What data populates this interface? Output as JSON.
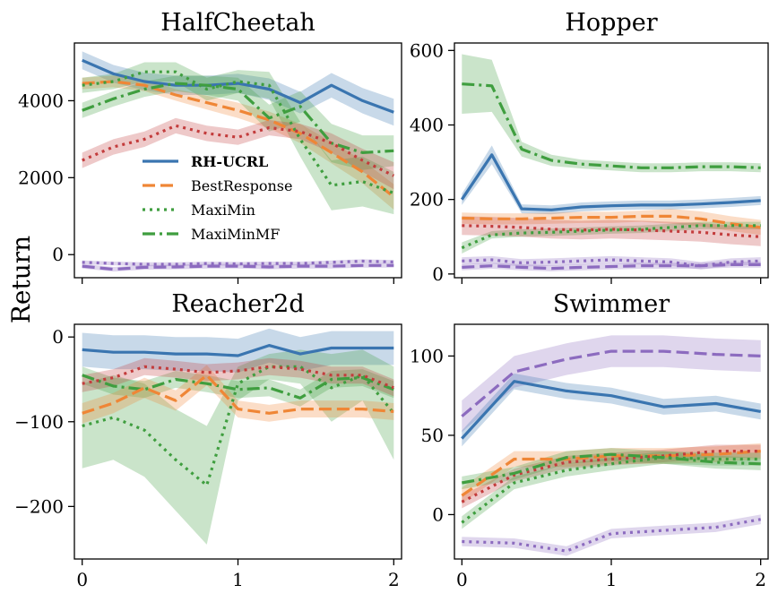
{
  "figure": {
    "ylabel": "Return"
  },
  "colors": {
    "blue": "#3a75b0",
    "orange": "#ef8636",
    "green": "#3f9e3f",
    "red": "#c33c3c",
    "purple": "#8c6bbf"
  },
  "legend": {
    "panel": 0,
    "entries": [
      {
        "label": "RH-UCRL",
        "color": "#3a75b0",
        "dash": "solid",
        "bold": true
      },
      {
        "label": "BestResponse",
        "color": "#ef8636",
        "dash": "dashed",
        "bold": false
      },
      {
        "label": "MaxiMin",
        "color": "#3f9e3f",
        "dash": "dotted",
        "bold": false
      },
      {
        "label": "MaxiMinMF",
        "color": "#3f9e3f",
        "dash": "dashdot",
        "bold": false
      }
    ]
  },
  "chart_data": [
    {
      "type": "line",
      "title": "HalfCheetah",
      "xlim": [
        -0.05,
        2.05
      ],
      "ylim": [
        -600,
        5500
      ],
      "xticks": [
        0,
        1,
        2
      ],
      "xticklabels": [
        "",
        "",
        ""
      ],
      "yticks": [
        0,
        2000,
        4000
      ],
      "yticklabels": [
        "0",
        "2000",
        "4000"
      ],
      "grid": false,
      "series": [
        {
          "color": "#3a75b0",
          "dash": "solid",
          "x": [
            0,
            0.2,
            0.4,
            0.6,
            0.8,
            1.0,
            1.2,
            1.4,
            1.6,
            1.8,
            2.0
          ],
          "y": [
            5050,
            4700,
            4500,
            4400,
            4400,
            4450,
            4300,
            3950,
            4400,
            4000,
            3700
          ],
          "band": [
            230,
            230,
            230,
            250,
            250,
            250,
            280,
            280,
            320,
            330,
            350
          ]
        },
        {
          "color": "#ef8636",
          "dash": "dashed",
          "x": [
            0,
            0.2,
            0.4,
            0.6,
            0.8,
            1.0,
            1.2,
            1.4,
            1.6,
            1.8,
            2.0
          ],
          "y": [
            4450,
            4500,
            4400,
            4150,
            3950,
            3750,
            3500,
            3150,
            2650,
            2150,
            1500
          ],
          "band": [
            150,
            150,
            150,
            150,
            180,
            200,
            220,
            250,
            280,
            300,
            330
          ]
        },
        {
          "color": "#3f9e3f",
          "dash": "dotted",
          "x": [
            0,
            0.2,
            0.4,
            0.6,
            0.8,
            1.0,
            1.2,
            1.4,
            1.6,
            1.8,
            2.0
          ],
          "y": [
            4400,
            4500,
            4750,
            4750,
            4300,
            4500,
            4400,
            3000,
            1800,
            1900,
            1600
          ],
          "band": [
            200,
            200,
            250,
            250,
            300,
            300,
            350,
            450,
            650,
            650,
            550
          ]
        },
        {
          "color": "#3f9e3f",
          "dash": "dashdot",
          "x": [
            0,
            0.2,
            0.4,
            0.6,
            0.8,
            1.0,
            1.2,
            1.4,
            1.6,
            1.8,
            2.0
          ],
          "y": [
            3750,
            4050,
            4300,
            4450,
            4400,
            4300,
            3550,
            3850,
            2900,
            2650,
            2700
          ],
          "band": [
            200,
            200,
            200,
            200,
            250,
            300,
            350,
            400,
            500,
            450,
            400
          ]
        },
        {
          "color": "#c33c3c",
          "dash": "dotted",
          "x": [
            0,
            0.2,
            0.4,
            0.6,
            0.8,
            1.0,
            1.2,
            1.4,
            1.6,
            1.8,
            2.0
          ],
          "y": [
            2450,
            2800,
            3000,
            3350,
            3150,
            3050,
            3300,
            3200,
            2900,
            2450,
            2050
          ],
          "band": [
            200,
            200,
            200,
            200,
            200,
            200,
            200,
            200,
            250,
            300,
            350
          ]
        },
        {
          "color": "#8c6bbf",
          "dash": "dashed",
          "x": [
            0,
            0.2,
            0.4,
            0.6,
            0.8,
            1.0,
            1.2,
            1.4,
            1.6,
            1.8,
            2.0
          ],
          "y": [
            -300,
            -380,
            -330,
            -320,
            -300,
            -300,
            -320,
            -300,
            -300,
            -280,
            -280
          ],
          "band": [
            60,
            60,
            60,
            60,
            60,
            60,
            60,
            60,
            60,
            60,
            60
          ]
        },
        {
          "color": "#8c6bbf",
          "dash": "dotted",
          "x": [
            0,
            0.2,
            0.4,
            0.6,
            0.8,
            1.0,
            1.2,
            1.4,
            1.6,
            1.8,
            2.0
          ],
          "y": [
            -200,
            -230,
            -250,
            -250,
            -230,
            -240,
            -230,
            -230,
            -200,
            -170,
            -190
          ],
          "band": [
            50,
            50,
            50,
            50,
            50,
            50,
            50,
            50,
            50,
            50,
            50
          ]
        }
      ]
    },
    {
      "type": "line",
      "title": "Hopper",
      "xlim": [
        -0.05,
        2.05
      ],
      "ylim": [
        -10,
        620
      ],
      "xticks": [
        0,
        1,
        2
      ],
      "xticklabels": [
        "",
        "",
        ""
      ],
      "yticks": [
        0,
        200,
        400,
        600
      ],
      "yticklabels": [
        "0",
        "200",
        "400",
        "600"
      ],
      "grid": false,
      "series": [
        {
          "color": "#3f9e3f",
          "dash": "dashdot",
          "x": [
            0,
            0.2,
            0.4,
            0.6,
            0.8,
            1.0,
            1.2,
            1.4,
            1.6,
            1.8,
            2.0
          ],
          "y": [
            510,
            505,
            335,
            305,
            295,
            290,
            285,
            285,
            288,
            288,
            285
          ],
          "band": [
            80,
            70,
            20,
            15,
            12,
            12,
            12,
            12,
            12,
            12,
            12
          ]
        },
        {
          "color": "#3a75b0",
          "dash": "solid",
          "x": [
            0,
            0.2,
            0.4,
            0.6,
            0.8,
            1.0,
            1.2,
            1.4,
            1.6,
            1.8,
            2.0
          ],
          "y": [
            200,
            320,
            175,
            172,
            180,
            183,
            185,
            185,
            188,
            192,
            197
          ],
          "band": [
            15,
            25,
            12,
            12,
            12,
            12,
            12,
            12,
            12,
            12,
            12
          ]
        },
        {
          "color": "#ef8636",
          "dash": "dashed",
          "x": [
            0,
            0.2,
            0.4,
            0.6,
            0.8,
            1.0,
            1.2,
            1.4,
            1.6,
            1.8,
            2.0
          ],
          "y": [
            150,
            148,
            148,
            150,
            152,
            152,
            155,
            155,
            148,
            135,
            125
          ],
          "band": [
            15,
            15,
            15,
            15,
            15,
            15,
            15,
            20,
            20,
            20,
            20
          ]
        },
        {
          "color": "#3f9e3f",
          "dash": "dotted",
          "x": [
            0,
            0.2,
            0.4,
            0.6,
            0.8,
            1.0,
            1.2,
            1.4,
            1.6,
            1.8,
            2.0
          ],
          "y": [
            70,
            105,
            110,
            112,
            115,
            118,
            120,
            125,
            130,
            130,
            130
          ],
          "band": [
            15,
            10,
            10,
            10,
            10,
            10,
            10,
            10,
            10,
            10,
            10
          ]
        },
        {
          "color": "#c33c3c",
          "dash": "dotted",
          "x": [
            0,
            0.2,
            0.4,
            0.6,
            0.8,
            1.0,
            1.2,
            1.4,
            1.6,
            1.8,
            2.0
          ],
          "y": [
            130,
            128,
            125,
            120,
            118,
            120,
            118,
            115,
            112,
            105,
            100
          ],
          "band": [
            25,
            25,
            25,
            25,
            25,
            25,
            25,
            25,
            25,
            25,
            25
          ]
        },
        {
          "color": "#8c6bbf",
          "dash": "dotted",
          "x": [
            0,
            0.2,
            0.4,
            0.6,
            0.8,
            1.0,
            1.2,
            1.4,
            1.6,
            1.8,
            2.0
          ],
          "y": [
            35,
            38,
            30,
            32,
            35,
            38,
            35,
            32,
            22,
            32,
            35
          ],
          "band": [
            10,
            10,
            10,
            10,
            10,
            10,
            10,
            10,
            10,
            10,
            10
          ]
        },
        {
          "color": "#8c6bbf",
          "dash": "dashed",
          "x": [
            0,
            0.2,
            0.4,
            0.6,
            0.8,
            1.0,
            1.2,
            1.4,
            1.6,
            1.8,
            2.0
          ],
          "y": [
            18,
            22,
            18,
            15,
            18,
            20,
            22,
            22,
            22,
            25,
            25
          ],
          "band": [
            8,
            8,
            8,
            8,
            8,
            8,
            8,
            8,
            8,
            8,
            8
          ]
        }
      ]
    },
    {
      "type": "line",
      "title": "Reacher2d",
      "xlim": [
        -0.05,
        2.05
      ],
      "ylim": [
        -262,
        15
      ],
      "xticks": [
        0,
        1,
        2
      ],
      "xticklabels": [
        "0",
        "1",
        "2"
      ],
      "yticks": [
        -200,
        -100,
        0
      ],
      "yticklabels": [
        "−200",
        "−100",
        "0"
      ],
      "grid": false,
      "series": [
        {
          "color": "#3a75b0",
          "dash": "solid",
          "x": [
            0,
            0.2,
            0.4,
            0.6,
            0.8,
            1.0,
            1.2,
            1.4,
            1.6,
            1.8,
            2.0
          ],
          "y": [
            -15,
            -18,
            -18,
            -20,
            -20,
            -22,
            -10,
            -20,
            -13,
            -13,
            -13
          ],
          "band": [
            20,
            20,
            20,
            20,
            20,
            20,
            20,
            20,
            20,
            20,
            20
          ]
        },
        {
          "color": "#3f9e3f",
          "dash": "dotted",
          "x": [
            0,
            0.2,
            0.4,
            0.6,
            0.8,
            1.0,
            1.2,
            1.4,
            1.6,
            1.8,
            2.0
          ],
          "y": [
            -105,
            -95,
            -110,
            -145,
            -175,
            -55,
            -35,
            -35,
            -60,
            -45,
            -90
          ],
          "band": [
            50,
            50,
            55,
            60,
            70,
            20,
            15,
            20,
            40,
            30,
            55
          ]
        },
        {
          "color": "#3f9e3f",
          "dash": "dashdot",
          "x": [
            0,
            0.2,
            0.4,
            0.6,
            0.8,
            1.0,
            1.2,
            1.4,
            1.6,
            1.8,
            2.0
          ],
          "y": [
            -45,
            -58,
            -62,
            -50,
            -55,
            -62,
            -60,
            -72,
            -50,
            -48,
            -62
          ],
          "band": [
            10,
            10,
            10,
            10,
            10,
            10,
            10,
            10,
            10,
            10,
            10
          ]
        },
        {
          "color": "#ef8636",
          "dash": "dashed",
          "x": [
            0,
            0.2,
            0.4,
            0.6,
            0.8,
            1.0,
            1.2,
            1.4,
            1.6,
            1.8,
            2.0
          ],
          "y": [
            -90,
            -78,
            -60,
            -75,
            -45,
            -85,
            -90,
            -85,
            -85,
            -85,
            -88
          ],
          "band": [
            12,
            12,
            12,
            12,
            12,
            10,
            10,
            10,
            10,
            10,
            10
          ]
        },
        {
          "color": "#c33c3c",
          "dash": "dotted",
          "x": [
            0,
            0.2,
            0.4,
            0.6,
            0.8,
            1.0,
            1.2,
            1.4,
            1.6,
            1.8,
            2.0
          ],
          "y": [
            -55,
            -48,
            -35,
            -38,
            -42,
            -40,
            -35,
            -38,
            -45,
            -45,
            -60
          ],
          "band": [
            10,
            10,
            10,
            10,
            10,
            10,
            10,
            10,
            10,
            10,
            10
          ]
        }
      ]
    },
    {
      "type": "line",
      "title": "Swimmer",
      "xlim": [
        -0.05,
        2.05
      ],
      "ylim": [
        -28,
        120
      ],
      "xticks": [
        0,
        1,
        2
      ],
      "xticklabels": [
        "0",
        "1",
        "2"
      ],
      "yticks": [
        0,
        50,
        100
      ],
      "yticklabels": [
        "0",
        "50",
        "100"
      ],
      "grid": false,
      "series": [
        {
          "color": "#8c6bbf",
          "dash": "dashed",
          "x": [
            0,
            0.35,
            0.7,
            1.0,
            1.35,
            1.7,
            2.0
          ],
          "y": [
            62,
            90,
            98,
            103,
            103,
            101,
            100
          ],
          "band": [
            10,
            10,
            10,
            10,
            10,
            10,
            10
          ]
        },
        {
          "color": "#3a75b0",
          "dash": "solid",
          "x": [
            0,
            0.35,
            0.7,
            1.0,
            1.35,
            1.7,
            2.0
          ],
          "y": [
            48,
            84,
            78,
            75,
            68,
            70,
            65
          ],
          "band": [
            5,
            5,
            5,
            5,
            5,
            5,
            5
          ]
        },
        {
          "color": "#ef8636",
          "dash": "dashed",
          "x": [
            0,
            0.35,
            0.7,
            1.0,
            1.35,
            1.7,
            2.0
          ],
          "y": [
            12,
            35,
            35,
            37,
            37,
            38,
            40
          ],
          "band": [
            5,
            5,
            5,
            5,
            5,
            5,
            5
          ]
        },
        {
          "color": "#c33c3c",
          "dash": "dotted",
          "x": [
            0,
            0.35,
            0.7,
            1.0,
            1.35,
            1.7,
            2.0
          ],
          "y": [
            8,
            25,
            33,
            35,
            37,
            40,
            40
          ],
          "band": [
            4,
            4,
            4,
            4,
            4,
            4,
            4
          ]
        },
        {
          "color": "#3f9e3f",
          "dash": "dashdot",
          "x": [
            0,
            0.35,
            0.7,
            1.0,
            1.35,
            1.7,
            2.0
          ],
          "y": [
            20,
            26,
            36,
            38,
            36,
            33,
            32
          ],
          "band": [
            4,
            4,
            4,
            4,
            4,
            4,
            4
          ]
        },
        {
          "color": "#3f9e3f",
          "dash": "dotted",
          "x": [
            0,
            0.35,
            0.7,
            1.0,
            1.35,
            1.7,
            2.0
          ],
          "y": [
            -5,
            20,
            28,
            32,
            36,
            35,
            35
          ],
          "band": [
            4,
            4,
            4,
            4,
            4,
            4,
            4
          ]
        },
        {
          "color": "#8c6bbf",
          "dash": "dotted",
          "x": [
            0,
            0.35,
            0.7,
            1.0,
            1.35,
            1.7,
            2.0
          ],
          "y": [
            -17,
            -18,
            -23,
            -12,
            -10,
            -8,
            -3
          ],
          "band": [
            3,
            3,
            3,
            3,
            3,
            3,
            3
          ]
        }
      ]
    }
  ]
}
